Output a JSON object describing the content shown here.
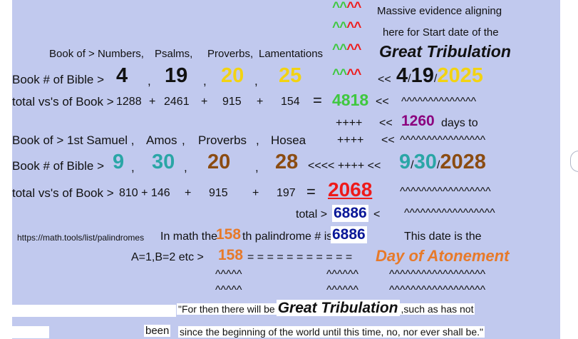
{
  "colors": {
    "panel_bg": "#c1c9ee",
    "green": "#3fc83f",
    "red": "#ee1a1a",
    "yellow": "#f2d312",
    "teal": "#2aa6a6",
    "brown": "#8b4c12",
    "purple": "#8b007e",
    "orange": "#e77a2a",
    "navy": "#0a1898"
  },
  "header": {
    "caret_green": "^^",
    "caret_red": "^^",
    "line1": "Massive evidence aligning",
    "line2": "here for Start date of the",
    "title": "Great Tribulation"
  },
  "set1": {
    "books_label": "Book of > Numbers,",
    "books": [
      "Psalms,",
      "Proverbs,",
      "Lamentations"
    ],
    "booknum_label": "Book # of Bible >",
    "nums": [
      "4",
      "19",
      "20",
      "25"
    ],
    "comma": ",",
    "arrow": "<<",
    "date_month": "4",
    "date_day": "19",
    "date_year": "2025",
    "slash": "/",
    "verses_label": "total vs's of Book >",
    "verses": [
      "1288",
      "2461",
      "915",
      "154"
    ],
    "plus": "+",
    "equals": "=",
    "total": "4818",
    "tilde": "^^^^^^^^^^^^^^"
  },
  "mid": {
    "plus_marks": "++++",
    "arrow": "<<",
    "days_num": "1260",
    "days_text": "days to",
    "tilde": "^^^^^^^^^^^^^^^^"
  },
  "set2": {
    "books_label": "Book of > 1st Samuel ,",
    "books": [
      "Amos",
      "Proverbs",
      "Hosea"
    ],
    "comma": ",",
    "booknum_label": "Book # of Bible >",
    "nums": [
      "9",
      "30",
      "20",
      "28"
    ],
    "arrow_run": "<<<< ++++  <<",
    "date_month": "9",
    "date_day": "30",
    "date_year": "2028",
    "slash": "/",
    "verses_label": "total vs's of Book >",
    "verses": [
      "810 + 146",
      "915",
      "197"
    ],
    "plus": "+",
    "equals": "=",
    "total": "2068",
    "tilde": "^^^^^^^^^^^^^^^^^"
  },
  "totals": {
    "label": "total >",
    "value": "6886",
    "arrow": "<",
    "tilde": "^^^^^^^^^^^^^^^^^"
  },
  "palindrome": {
    "url": "https://math.tools/list/palindromes",
    "text_pre": "In math the",
    "ordinal": "158",
    "text_mid": "th palindrome # is",
    "value": "6886",
    "date_text": "This date is the"
  },
  "gematria": {
    "label": "A=1,B=2 etc >",
    "value": "158",
    "equals_run": "=  =  = = = = = = = = =",
    "result": "Day of Atonement",
    "carets_a": "^^^^^",
    "carets_b": "^^^^^^",
    "carets_c": "^^^^^^^^^^^^^^^^^^"
  },
  "quote": {
    "pre": "\"For then there will be",
    "title": "Great Tribulation",
    "post": ",such as has not",
    "been": "been",
    "line2": "since the beginning of the world until this time, no, nor ever shall be.\""
  }
}
